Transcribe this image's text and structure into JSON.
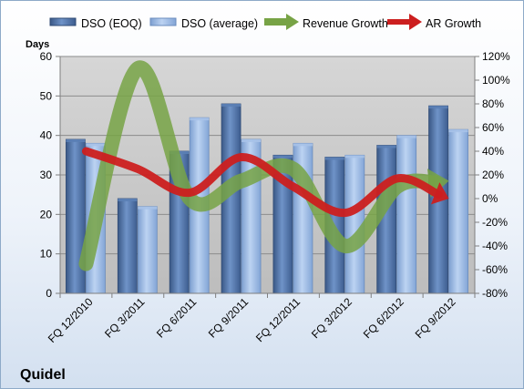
{
  "chart_data": {
    "type": "bar",
    "categories": [
      "FQ 12/2010",
      "FQ 3/2011",
      "FQ 6/2011",
      "FQ 9/2011",
      "FQ 12/2011",
      "FQ 3/2012",
      "FQ 6/2012",
      "FQ 9/2012"
    ],
    "series": [
      {
        "name": "DSO (EOQ)",
        "type": "bar",
        "axis": "left",
        "color": "#4a6ea5",
        "values": [
          39,
          24,
          36,
          48,
          35,
          34.5,
          37.5,
          47.5
        ]
      },
      {
        "name": "DSO (average)",
        "type": "bar",
        "axis": "left",
        "color": "#8fb2e0",
        "values": [
          38,
          22,
          44.5,
          39,
          38,
          35,
          40,
          41.5
        ]
      },
      {
        "name": "Revenue Growth",
        "type": "line",
        "axis": "right",
        "color": "#77a345",
        "values": [
          -55,
          110,
          0,
          15,
          25,
          -40,
          10,
          15
        ]
      },
      {
        "name": "AR Growth",
        "type": "line",
        "axis": "right",
        "color": "#cc1f1f",
        "values": [
          40,
          25,
          5,
          35,
          10,
          -12,
          17,
          0
        ]
      }
    ],
    "ylabel": "Days",
    "ylim": [
      0,
      60
    ],
    "yticks": [
      "0",
      "10",
      "20",
      "30",
      "40",
      "50",
      "60"
    ],
    "y2lim": [
      -80,
      120
    ],
    "y2ticks": [
      "-80%",
      "-60%",
      "-40%",
      "-20%",
      "0%",
      "20%",
      "40%",
      "60%",
      "80%",
      "100%",
      "120%"
    ],
    "grid": true,
    "legend": "top",
    "company": "Quidel"
  }
}
